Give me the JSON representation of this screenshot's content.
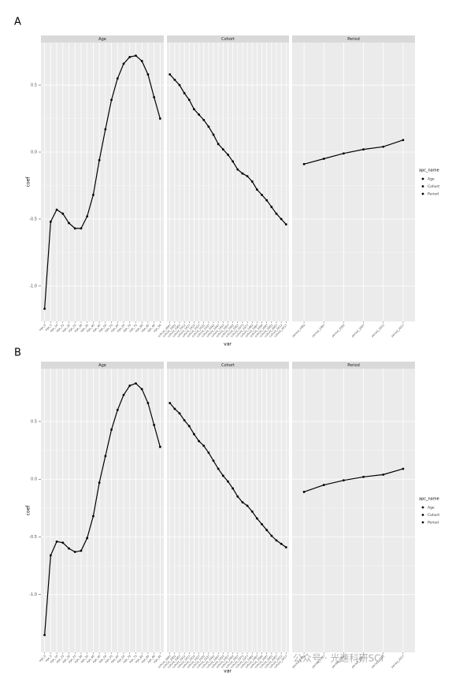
{
  "chart_data": [
    {
      "type": "line",
      "panel_label": "A",
      "x_label": "var",
      "y_label": "coef",
      "legend_title": "apc_name",
      "color": "#000000",
      "grid": true,
      "ylim": [
        -1.265,
        0.818
      ],
      "yticks": [
        {
          "value": -1,
          "label": "-1.0"
        },
        {
          "value": -0.5,
          "label": "-0.5"
        },
        {
          "value": 0,
          "label": "0.0"
        },
        {
          "value": 0.5,
          "label": "0.5"
        }
      ],
      "facets": [
        {
          "name": "Age",
          "categories": [
            "age_0",
            "age_5",
            "age_10",
            "age_15",
            "age_20",
            "age_25",
            "age_30",
            "age_35",
            "age_40",
            "age_45",
            "age_50",
            "age_55",
            "age_60",
            "age_65",
            "age_70",
            "age_75",
            "age_80",
            "age_85",
            "age_90",
            "age_95"
          ],
          "values": [
            -1.17,
            -0.52,
            -0.43,
            -0.46,
            -0.53,
            -0.57,
            -0.57,
            -0.48,
            -0.32,
            -0.06,
            0.17,
            0.39,
            0.55,
            0.66,
            0.71,
            0.72,
            0.68,
            0.58,
            0.41,
            0.25
          ]
        },
        {
          "name": "Cohort",
          "categories": [
            "cohort_1897",
            "cohort_1902",
            "cohort_1907",
            "cohort_1912",
            "cohort_1917",
            "cohort_1922",
            "cohort_1927",
            "cohort_1932",
            "cohort_1937",
            "cohort_1942",
            "cohort_1947",
            "cohort_1952",
            "cohort_1957",
            "cohort_1962",
            "cohort_1967",
            "cohort_1972",
            "cohort_1977",
            "cohort_1982",
            "cohort_1987",
            "cohort_1992",
            "cohort_1997",
            "cohort_2002",
            "cohort_2007",
            "cohort_2012",
            "cohort_2017"
          ],
          "values": [
            0.58,
            0.54,
            0.5,
            0.44,
            0.39,
            0.32,
            0.28,
            0.24,
            0.19,
            0.13,
            0.06,
            0.02,
            -0.02,
            -0.07,
            -0.13,
            -0.16,
            -0.18,
            -0.22,
            -0.28,
            -0.32,
            -0.36,
            -0.41,
            -0.46,
            -0.5,
            -0.54
          ]
        },
        {
          "name": "Period",
          "categories": [
            "period_1992",
            "period_1997",
            "period_2002",
            "period_2007",
            "period_2012",
            "period_2017"
          ],
          "values": [
            -0.09,
            -0.05,
            -0.01,
            0.02,
            0.04,
            0.09
          ]
        }
      ]
    },
    {
      "type": "line",
      "panel_label": "B",
      "x_label": "var",
      "y_label": "coef",
      "legend_title": "apc_name",
      "color": "#000000",
      "grid": true,
      "ylim": [
        -1.5,
        0.957
      ],
      "yticks": [
        {
          "value": -1,
          "label": "-1.0"
        },
        {
          "value": -0.5,
          "label": "-0.5"
        },
        {
          "value": 0,
          "label": "0.0"
        },
        {
          "value": 0.5,
          "label": "0.5"
        }
      ],
      "facets": [
        {
          "name": "Age",
          "categories": [
            "age_0",
            "age_5",
            "age_10",
            "age_15",
            "age_20",
            "age_25",
            "age_30",
            "age_35",
            "age_40",
            "age_45",
            "age_50",
            "age_55",
            "age_60",
            "age_65",
            "age_70",
            "age_75",
            "age_80",
            "age_85",
            "age_90",
            "age_95"
          ],
          "values": [
            -1.35,
            -0.66,
            -0.54,
            -0.55,
            -0.6,
            -0.63,
            -0.62,
            -0.51,
            -0.32,
            -0.03,
            0.2,
            0.43,
            0.6,
            0.73,
            0.81,
            0.83,
            0.78,
            0.66,
            0.47,
            0.28
          ]
        },
        {
          "name": "Cohort",
          "categories": [
            "cohort_1897",
            "cohort_1902",
            "cohort_1907",
            "cohort_1912",
            "cohort_1917",
            "cohort_1922",
            "cohort_1927",
            "cohort_1932",
            "cohort_1937",
            "cohort_1942",
            "cohort_1947",
            "cohort_1952",
            "cohort_1957",
            "cohort_1962",
            "cohort_1967",
            "cohort_1972",
            "cohort_1977",
            "cohort_1982",
            "cohort_1987",
            "cohort_1992",
            "cohort_1997",
            "cohort_2002",
            "cohort_2007",
            "cohort_2012",
            "cohort_2017"
          ],
          "values": [
            0.66,
            0.61,
            0.57,
            0.51,
            0.46,
            0.39,
            0.33,
            0.29,
            0.23,
            0.16,
            0.09,
            0.03,
            -0.02,
            -0.08,
            -0.15,
            -0.2,
            -0.23,
            -0.28,
            -0.34,
            -0.39,
            -0.44,
            -0.49,
            -0.53,
            -0.56,
            -0.59
          ]
        },
        {
          "name": "Period",
          "categories": [
            "period_1992",
            "period_1997",
            "period_2002",
            "period_2007",
            "period_2012",
            "period_2017"
          ],
          "values": [
            -0.11,
            -0.05,
            -0.01,
            0.02,
            0.04,
            0.09
          ]
        }
      ]
    }
  ],
  "watermark": "公众号 · 光速科研SCI"
}
